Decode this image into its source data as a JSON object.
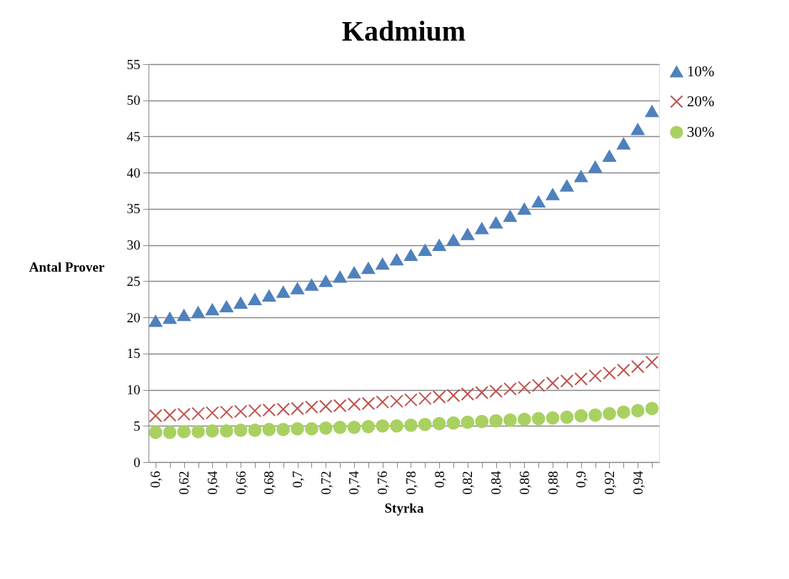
{
  "chart_data": {
    "type": "scatter",
    "title": "Kadmium",
    "xlabel": "Styrka",
    "ylabel": "Antal Prover",
    "categories": [
      "0,6",
      null,
      "0,62",
      null,
      "0,64",
      null,
      "0,66",
      null,
      "0,68",
      null,
      "0,7",
      null,
      "0,72",
      null,
      "0,74",
      null,
      "0,76",
      null,
      "0,78",
      null,
      "0,8",
      null,
      "0,82",
      null,
      "0,84",
      null,
      "0,86",
      null,
      "0,88",
      null,
      "0,9",
      null,
      "0,92",
      null,
      "0,94",
      null
    ],
    "series": [
      {
        "name": "10%",
        "color": "#4f81bd",
        "marker": "triangle",
        "values": [
          19.5,
          19.9,
          20.3,
          20.7,
          21.1,
          21.5,
          22.0,
          22.5,
          23.0,
          23.5,
          24.0,
          24.5,
          25.0,
          25.6,
          26.2,
          26.8,
          27.4,
          28.0,
          28.6,
          29.3,
          30.0,
          30.7,
          31.5,
          32.3,
          33.1,
          34.0,
          35.0,
          36.0,
          37.0,
          38.2,
          39.5,
          40.8,
          42.3,
          44.0,
          46.0,
          48.5
        ]
      },
      {
        "name": "20%",
        "color": "#c0504d",
        "marker": "cross",
        "values": [
          6.4,
          6.5,
          6.6,
          6.7,
          6.8,
          6.9,
          7.0,
          7.1,
          7.2,
          7.3,
          7.4,
          7.6,
          7.7,
          7.8,
          8.0,
          8.1,
          8.3,
          8.4,
          8.6,
          8.8,
          9.0,
          9.2,
          9.4,
          9.6,
          9.8,
          10.1,
          10.3,
          10.6,
          10.9,
          11.2,
          11.5,
          11.9,
          12.3,
          12.7,
          13.2,
          13.8
        ]
      },
      {
        "name": "30%",
        "color": "#a9d161",
        "marker": "circle",
        "values": [
          4.1,
          4.1,
          4.2,
          4.2,
          4.3,
          4.3,
          4.4,
          4.4,
          4.5,
          4.5,
          4.6,
          4.6,
          4.7,
          4.8,
          4.8,
          4.9,
          5.0,
          5.0,
          5.1,
          5.2,
          5.3,
          5.4,
          5.5,
          5.6,
          5.7,
          5.8,
          5.9,
          6.0,
          6.1,
          6.2,
          6.4,
          6.5,
          6.7,
          6.9,
          7.1,
          7.4
        ]
      }
    ],
    "ylim": [
      0,
      55
    ],
    "yticks": [
      0,
      5,
      10,
      15,
      20,
      25,
      30,
      35,
      40,
      45,
      50,
      55
    ],
    "grid": "y",
    "legend": "right"
  }
}
